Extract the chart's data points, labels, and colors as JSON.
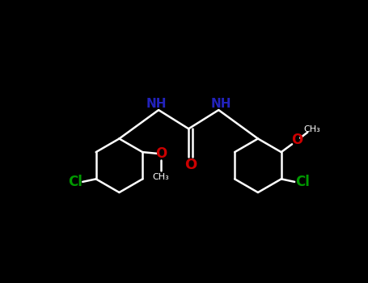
{
  "background_color": "#000000",
  "bond_color": "#ffffff",
  "nh_color": "#2222bb",
  "o_color": "#cc0000",
  "cl_color": "#009900",
  "lw": 1.8,
  "lw2": 1.3,
  "fig_width": 4.55,
  "fig_height": 3.5,
  "dpi": 100,
  "xlim": [
    0,
    10
  ],
  "ylim": [
    0,
    7.7
  ]
}
